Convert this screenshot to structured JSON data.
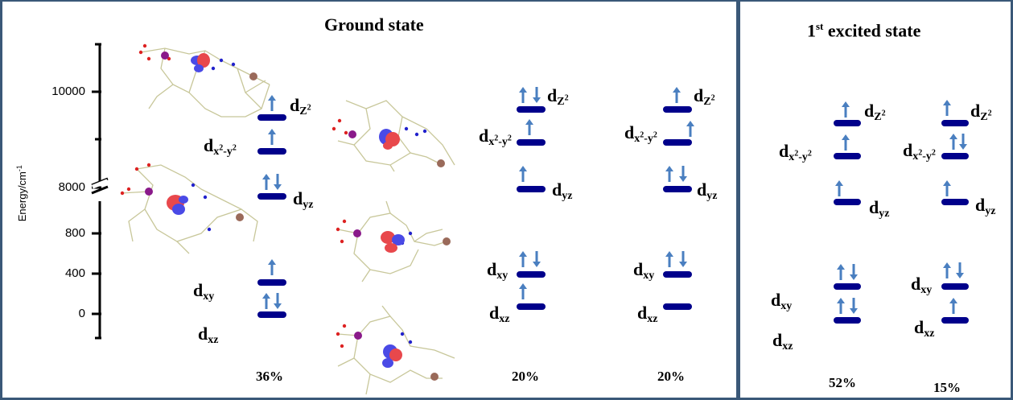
{
  "titles": {
    "ground": "Ground state",
    "excited_main": "1",
    "excited_sup": "st",
    "excited_rest": " excited state"
  },
  "axis": {
    "ylabel": "Energy/cm",
    "ylabel_sup": "-1",
    "ticks": [
      "10000",
      "8000",
      "800",
      "400",
      "0"
    ]
  },
  "orbitals": {
    "d": "d",
    "z2": "Z",
    "z2sup": "2",
    "x2y2_a": "x",
    "x2y2_b": "2",
    "x2y2_c": "-y",
    "x2y2_d": "2",
    "yz": "yz",
    "xy": "xy",
    "xz": "xz"
  },
  "percentages": [
    "36%",
    "20%",
    "20%",
    "52%",
    "15%"
  ],
  "colors": {
    "border": "#3a5878",
    "level": "#00008b",
    "arrow": "#4a7fc0",
    "lobe_red": "#e8484c",
    "lobe_blue": "#4a4ae6",
    "bond": "#c8c79a"
  }
}
